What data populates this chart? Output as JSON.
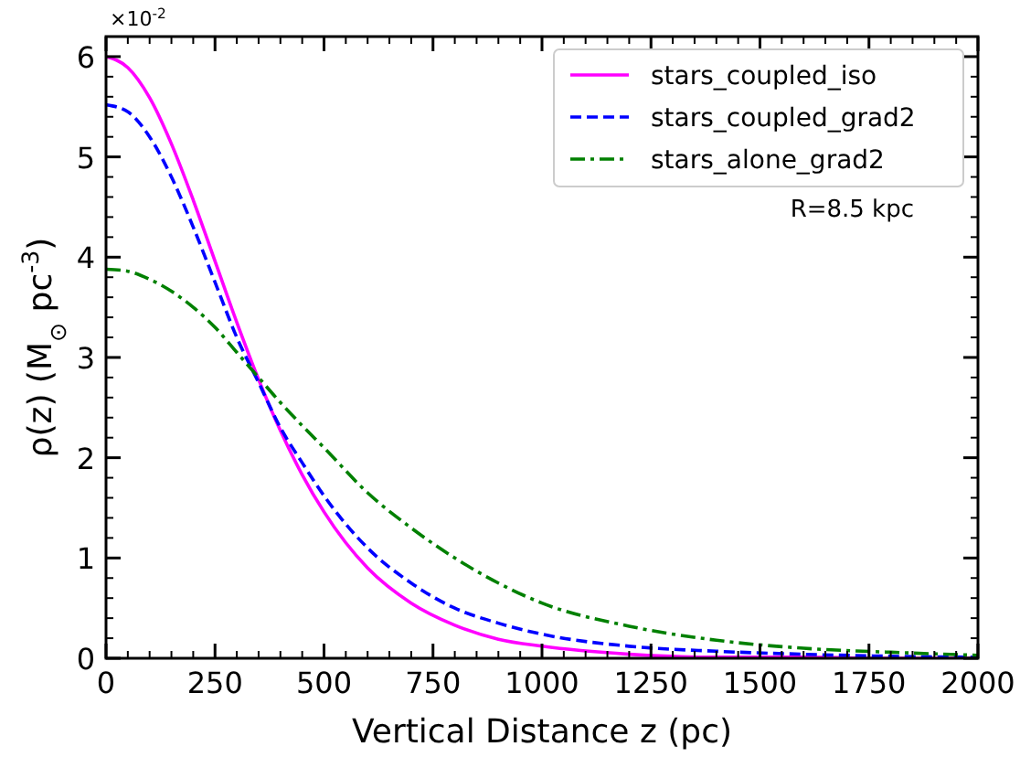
{
  "chart_data": {
    "type": "line",
    "xlabel": "Vertical Distance z (pc)",
    "ylabel": "ρ(z) (M$_{⊙}$ pc$^{-3}$)",
    "x": [
      0,
      50,
      100,
      150,
      200,
      250,
      300,
      350,
      400,
      450,
      500,
      600,
      700,
      800,
      900,
      1000,
      1200,
      1400,
      1600,
      1800,
      2000
    ],
    "series": [
      {
        "name": "stars_coupled_iso",
        "color": "#ff00ff",
        "line_style": "solid",
        "values": [
          6.0,
          5.89,
          5.59,
          5.13,
          4.57,
          3.96,
          3.35,
          2.78,
          2.27,
          1.83,
          1.46,
          0.9,
          0.55,
          0.33,
          0.19,
          0.12,
          0.04,
          0.01,
          0.01,
          0.0,
          0.0
        ]
      },
      {
        "name": "stars_coupled_grad2",
        "color": "#0000ff",
        "line_style": "dashed",
        "values": [
          5.52,
          5.45,
          5.2,
          4.8,
          4.3,
          3.75,
          3.2,
          2.75,
          2.3,
          1.95,
          1.62,
          1.1,
          0.75,
          0.5,
          0.35,
          0.24,
          0.12,
          0.07,
          0.04,
          0.02,
          0.01
        ]
      },
      {
        "name": "stars_alone_grad2",
        "color": "#008000",
        "line_style": "dashdot",
        "values": [
          3.88,
          3.86,
          3.78,
          3.66,
          3.5,
          3.3,
          3.05,
          2.8,
          2.55,
          2.32,
          2.1,
          1.65,
          1.3,
          1.0,
          0.75,
          0.55,
          0.32,
          0.18,
          0.1,
          0.06,
          0.03
        ]
      }
    ],
    "xlim": [
      0,
      2000
    ],
    "xticks": [
      0,
      250,
      500,
      750,
      1000,
      1250,
      1500,
      1750,
      2000
    ],
    "ylim": [
      0,
      6.2
    ],
    "yticks": [
      0,
      1,
      2,
      3,
      4,
      5,
      6
    ],
    "annotations": [
      "×10$^{-2}$",
      "R=8.5 kpc"
    ],
    "legend": "top right",
    "grid": false
  }
}
